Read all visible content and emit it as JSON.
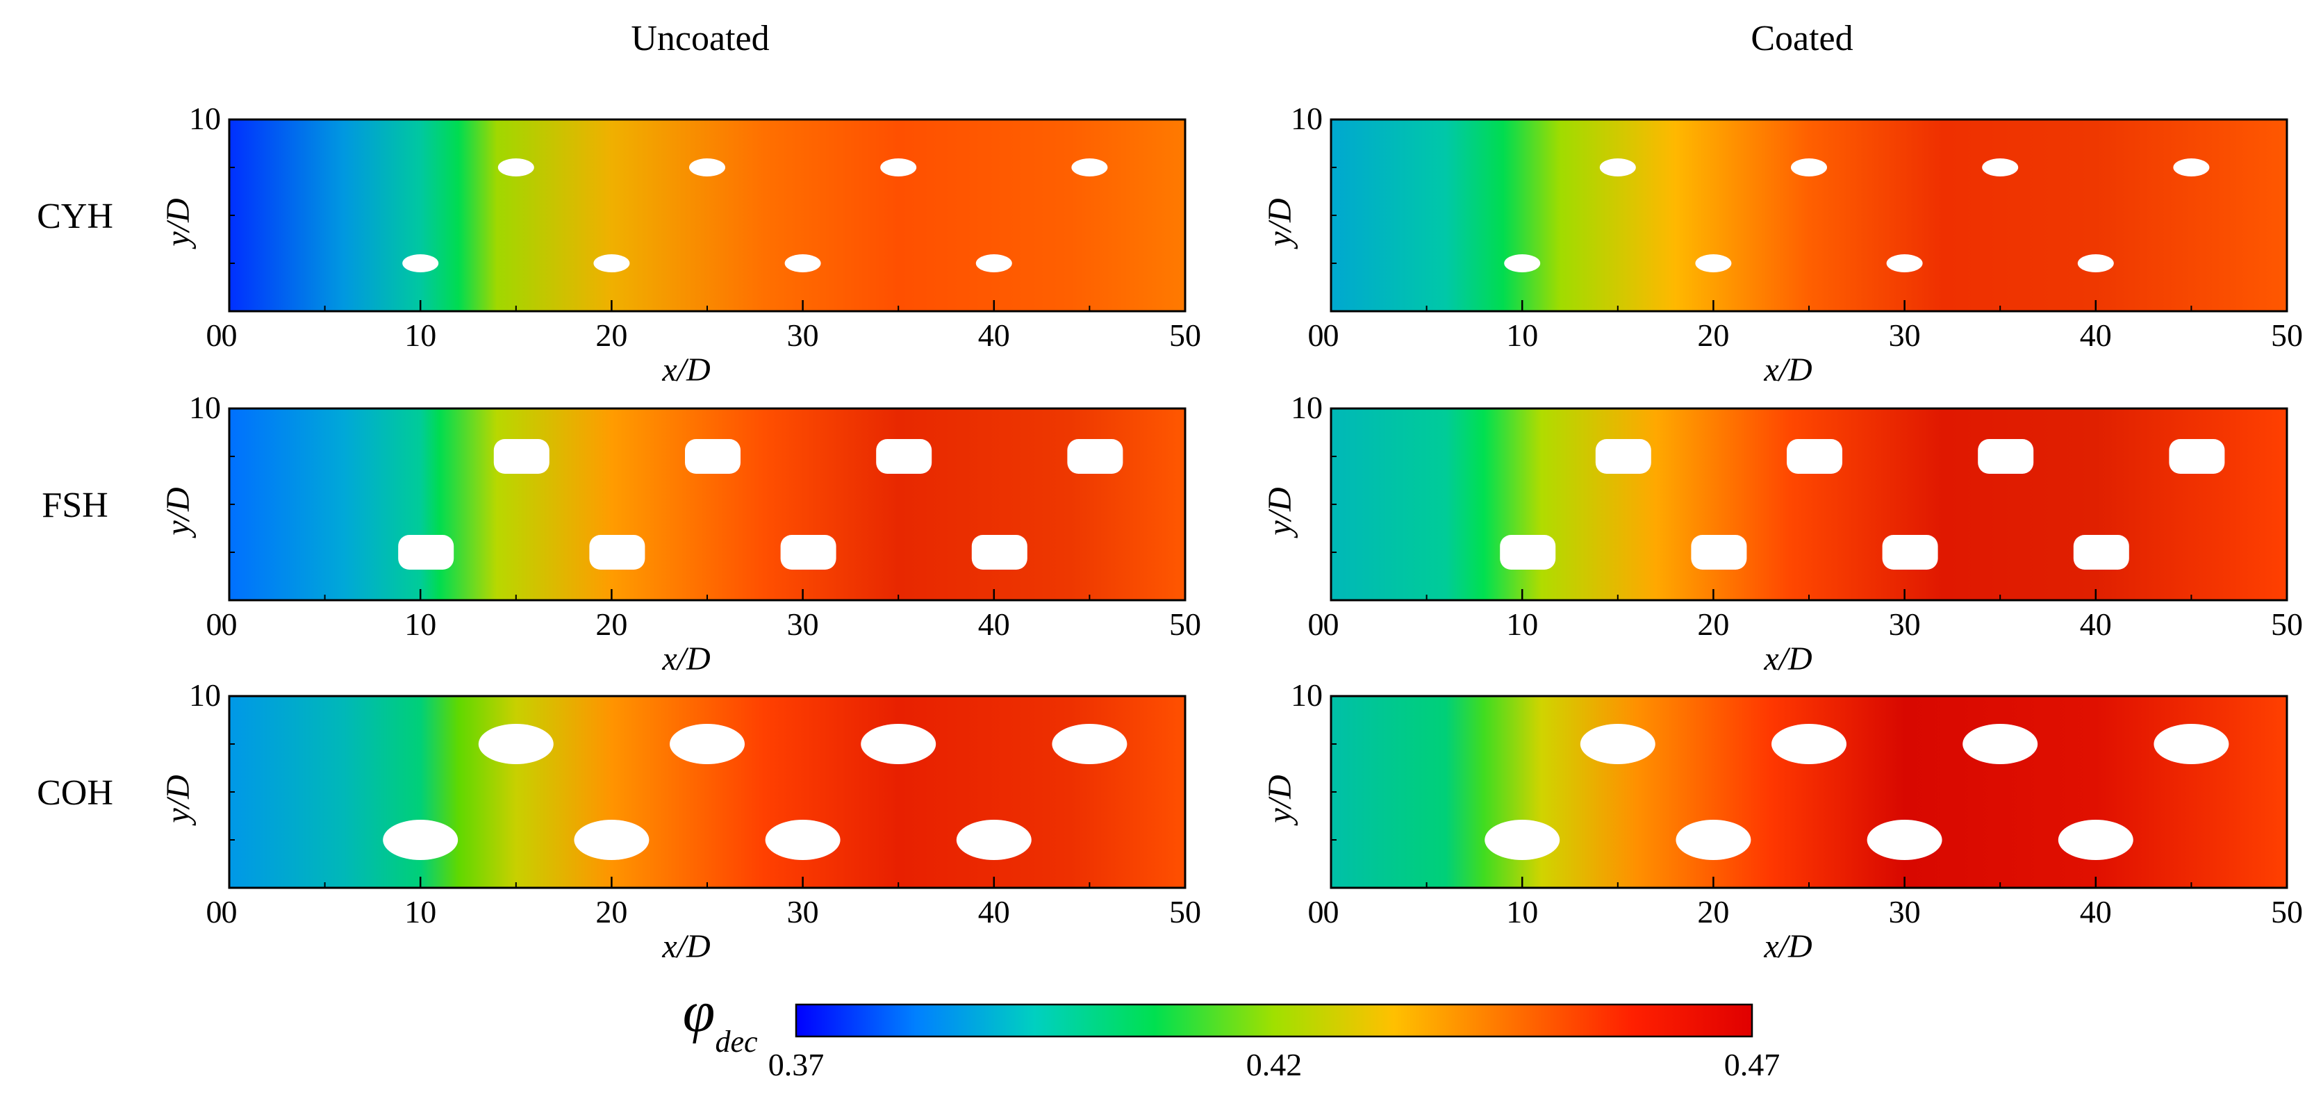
{
  "chart_data": {
    "type": "heatmap",
    "title": "",
    "columns": [
      "Uncoated",
      "Coated"
    ],
    "rows": [
      "CYH",
      "FSH",
      "COH"
    ],
    "xlabel": "x/D",
    "ylabel": "y/D",
    "xlim": [
      0,
      50
    ],
    "ylim": [
      0,
      10
    ],
    "xticks": [
      "0",
      "10",
      "20",
      "30",
      "40",
      "50"
    ],
    "yticks": [
      "10"
    ],
    "colorbar": {
      "label": "φ",
      "label_subscript": "dec",
      "min": 0.37,
      "mid": 0.42,
      "max": 0.47,
      "tick_labels": [
        "0.37",
        "0.42",
        "0.47"
      ],
      "colors": [
        "#0000ff",
        "#0080ff",
        "#00d0c0",
        "#00e050",
        "#a0e000",
        "#ffc000",
        "#ff7000",
        "#ff2000",
        "#e00000"
      ]
    },
    "holes": [
      {
        "x": 10,
        "y": 2.5
      },
      {
        "x": 20,
        "y": 2.5
      },
      {
        "x": 30,
        "y": 2.5
      },
      {
        "x": 40,
        "y": 2.5
      },
      {
        "x": 15,
        "y": 7.5
      },
      {
        "x": 25,
        "y": 7.5
      },
      {
        "x": 35,
        "y": 7.5
      },
      {
        "x": 45,
        "y": 7.5
      }
    ],
    "panels": [
      {
        "row": "CYH",
        "column": "Uncoated",
        "hole_shape": "ellipse-small",
        "profile": [
          [
            0,
            "#0030ff"
          ],
          [
            6,
            "#0098e0"
          ],
          [
            10,
            "#00c8a0"
          ],
          [
            12,
            "#00dc50"
          ],
          [
            14,
            "#a0d800"
          ],
          [
            20,
            "#f0b000"
          ],
          [
            28,
            "#ff7000"
          ],
          [
            35,
            "#ff5000"
          ],
          [
            44,
            "#ff6000"
          ],
          [
            50,
            "#ff7a00"
          ]
        ]
      },
      {
        "row": "CYH",
        "column": "Coated",
        "hole_shape": "ellipse-small",
        "profile": [
          [
            0,
            "#00a8d0"
          ],
          [
            6,
            "#00c8a8"
          ],
          [
            9,
            "#00dc50"
          ],
          [
            12,
            "#a0dc00"
          ],
          [
            18,
            "#ffb800"
          ],
          [
            25,
            "#ff6000"
          ],
          [
            32,
            "#ef3000"
          ],
          [
            40,
            "#ef3800"
          ],
          [
            50,
            "#ff5800"
          ]
        ]
      },
      {
        "row": "FSH",
        "column": "Uncoated",
        "hole_shape": "rounded-rect",
        "profile": [
          [
            0,
            "#0070ff"
          ],
          [
            6,
            "#00a8d8"
          ],
          [
            10,
            "#00cc98"
          ],
          [
            11,
            "#00dc50"
          ],
          [
            14,
            "#b8d800"
          ],
          [
            20,
            "#ff9c00"
          ],
          [
            28,
            "#ff5000"
          ],
          [
            35,
            "#e82800"
          ],
          [
            44,
            "#ee3800"
          ],
          [
            50,
            "#ff5800"
          ]
        ]
      },
      {
        "row": "FSH",
        "column": "Coated",
        "hole_shape": "rounded-rect",
        "profile": [
          [
            0,
            "#00b8b8"
          ],
          [
            6,
            "#00cc98"
          ],
          [
            8,
            "#00e050"
          ],
          [
            11,
            "#b0dc00"
          ],
          [
            17,
            "#ffa800"
          ],
          [
            24,
            "#ff4800"
          ],
          [
            32,
            "#e01800"
          ],
          [
            40,
            "#e02000"
          ],
          [
            50,
            "#ff4000"
          ]
        ]
      },
      {
        "row": "COH",
        "column": "Uncoated",
        "hole_shape": "ellipse-large",
        "profile": [
          [
            0,
            "#0098e8"
          ],
          [
            6,
            "#00b8b8"
          ],
          [
            10,
            "#00d078"
          ],
          [
            12,
            "#60d800"
          ],
          [
            15,
            "#c8d000"
          ],
          [
            20,
            "#ff9400"
          ],
          [
            28,
            "#ff4000"
          ],
          [
            35,
            "#e82000"
          ],
          [
            44,
            "#ee3000"
          ],
          [
            50,
            "#ff5000"
          ]
        ]
      },
      {
        "row": "COH",
        "column": "Coated",
        "hole_shape": "ellipse-large",
        "profile": [
          [
            0,
            "#00c0a8"
          ],
          [
            6,
            "#00d078"
          ],
          [
            8,
            "#40dc20"
          ],
          [
            11,
            "#d0d400"
          ],
          [
            16,
            "#ff9000"
          ],
          [
            23,
            "#ff3800"
          ],
          [
            30,
            "#d80800"
          ],
          [
            40,
            "#e01000"
          ],
          [
            50,
            "#ff4000"
          ]
        ]
      }
    ]
  }
}
